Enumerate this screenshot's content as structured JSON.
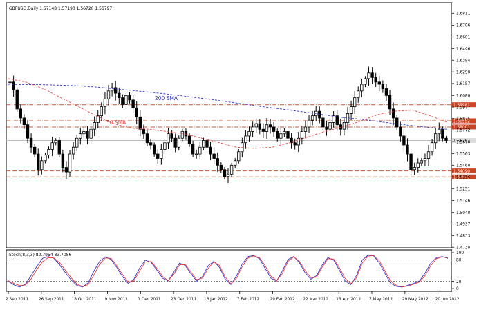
{
  "chart_data": [
    {
      "type": "candlestick",
      "title": "GBPUSD,Daily  1.57148 1.57190 1.56720 1.56797",
      "symbol": "GBPUSD",
      "timeframe": "Daily",
      "ohlc_header": {
        "open": 1.57148,
        "high": 1.5719,
        "low": 1.5672,
        "close": 1.56797
      },
      "ylim": [
        1.4725,
        1.6905
      ],
      "y_tick_labels": [
        "1.6811",
        "1.6706",
        "1.6601",
        "1.6496",
        "1.6394",
        "1.6290",
        "1.6187",
        "1.6080",
        "1.5977",
        "1.5875",
        "1.5772",
        "1.5670",
        "1.5563",
        "1.5460",
        "1.5356",
        "1.5251",
        "1.5146",
        "1.5040",
        "1.4937",
        "1.4833",
        "1.4730"
      ],
      "y_tick_values": [
        1.6811,
        1.6706,
        1.6601,
        1.6496,
        1.6394,
        1.629,
        1.6187,
        1.608,
        1.5977,
        1.5875,
        1.5772,
        1.567,
        1.5563,
        1.546,
        1.5356,
        1.5251,
        1.5146,
        1.504,
        1.4937,
        1.4833,
        1.473
      ],
      "x_tick_labels": [
        "2 Sep 2011",
        "26 Sep 2011",
        "18 Oct 2011",
        "9 Nov 2011",
        "1 Dec 2011",
        "23 Dec 2011",
        "16 Jan 2012",
        "7 Feb 2012",
        "29 Feb 2012",
        "22 Mar 2012",
        "13 Apr 2012",
        "7 May 2012",
        "29 May 2012",
        "20 Jun 2012"
      ],
      "price_series": [
        1.62,
        1.613,
        1.596,
        1.588,
        1.582,
        1.57,
        1.562,
        1.556,
        1.542,
        1.55,
        1.555,
        1.56,
        1.566,
        1.568,
        1.556,
        1.544,
        1.54,
        1.556,
        1.562,
        1.57,
        1.574,
        1.576,
        1.57,
        1.578,
        1.584,
        1.59,
        1.598,
        1.605,
        1.612,
        1.615,
        1.61,
        1.606,
        1.6,
        1.608,
        1.604,
        1.597,
        1.589,
        1.578,
        1.574,
        1.566,
        1.564,
        1.556,
        1.552,
        1.56,
        1.566,
        1.574,
        1.57,
        1.562,
        1.57,
        1.576,
        1.572,
        1.565,
        1.556,
        1.556,
        1.562,
        1.568,
        1.562,
        1.556,
        1.552,
        1.546,
        1.542,
        1.536,
        1.538,
        1.546,
        1.55,
        1.558,
        1.566,
        1.572,
        1.576,
        1.58,
        1.583,
        1.578,
        1.576,
        1.582,
        1.58,
        1.576,
        1.57,
        1.574,
        1.576,
        1.57,
        1.566,
        1.564,
        1.57,
        1.576,
        1.58,
        1.586,
        1.59,
        1.594,
        1.588,
        1.58,
        1.578,
        1.584,
        1.59,
        1.582,
        1.578,
        1.584,
        1.592,
        1.598,
        1.606,
        1.612,
        1.618,
        1.623,
        1.628,
        1.624,
        1.62,
        1.618,
        1.614,
        1.608,
        1.596,
        1.588,
        1.58,
        1.572,
        1.564,
        1.556,
        1.542,
        1.544,
        1.548,
        1.55,
        1.552,
        1.558,
        1.566,
        1.574,
        1.578,
        1.57,
        1.568
      ],
      "lines": [
        {
          "name": "200 SMA",
          "color": "#3333cc",
          "values": [
            1.618,
            1.6178,
            1.6176,
            1.6172,
            1.6166,
            1.6155,
            1.614,
            1.6125,
            1.611,
            1.6093,
            1.6075,
            1.6055,
            1.6035,
            1.6013,
            1.599,
            1.597,
            1.595,
            1.593,
            1.5908,
            1.5885,
            1.587,
            1.585,
            1.583,
            1.5812,
            1.5795,
            1.5779
          ]
        },
        {
          "name": "50 SMA",
          "color": "#ee4444",
          "values": [
            1.623,
            1.62,
            1.614,
            1.606,
            1.598,
            1.59,
            1.583,
            1.579,
            1.578,
            1.576,
            1.574,
            1.57,
            1.566,
            1.562,
            1.561,
            1.562,
            1.566,
            1.571,
            1.576,
            1.58,
            1.585,
            1.591,
            1.594,
            1.595,
            1.59,
            1.584
          ]
        }
      ],
      "hlines": [
        {
          "value": 1.5998,
          "label": "1.59981",
          "color": "#cc5533",
          "style": "dashdot"
        },
        {
          "value": 1.5855,
          "label": "1.58552",
          "color": "#cc5533",
          "style": "dashdot"
        },
        {
          "value": 1.58,
          "label": "1.58001",
          "color": "#cc5533",
          "style": "dashdot"
        },
        {
          "value": 1.568,
          "label": "1.56797",
          "color": "#bbbbbb",
          "style": "solid"
        },
        {
          "value": 1.5409,
          "label": "1.54090",
          "color": "#cc5533",
          "style": "dashed"
        },
        {
          "value": 1.5356,
          "label": "1.53562",
          "color": "#cc5533",
          "style": "dashed"
        }
      ],
      "annotations": [
        {
          "text": "200 SMA",
          "color": "#3333cc"
        },
        {
          "text": "50 SMA",
          "color": "#ee4444"
        }
      ],
      "grid": false
    },
    {
      "type": "line",
      "title": "Stoch(8,3,3) 80.7954 83.7086",
      "ylim": [
        0,
        100
      ],
      "y_tick_labels": [
        "100",
        "80",
        "20",
        "0"
      ],
      "y_tick_values": [
        100,
        80,
        20,
        0
      ],
      "levels": [
        80,
        20
      ],
      "series": [
        {
          "color": "#3333cc",
          "values": [
            20,
            10,
            4,
            12,
            36,
            62,
            84,
            89,
            84,
            66,
            44,
            24,
            9,
            4,
            16,
            49,
            76,
            88,
            81,
            59,
            33,
            14,
            26,
            57,
            79,
            73,
            52,
            29,
            21,
            46,
            71,
            64,
            41,
            21,
            33,
            63,
            76,
            59,
            26,
            11,
            36,
            69,
            89,
            92,
            83,
            56,
            29,
            21,
            49,
            81,
            89,
            72,
            44,
            26,
            36,
            66,
            86,
            79,
            51,
            21,
            11,
            36,
            79,
            93,
            91,
            71,
            41,
            14,
            6,
            4,
            9,
            14,
            21,
            43,
            71,
            86,
            89,
            84
          ]
        },
        {
          "color": "#ee3333",
          "values": [
            22,
            14,
            8,
            10,
            27,
            53,
            75,
            86,
            85,
            72,
            51,
            30,
            13,
            5,
            11,
            38,
            68,
            85,
            84,
            64,
            39,
            18,
            21,
            49,
            74,
            75,
            57,
            34,
            22,
            40,
            66,
            67,
            46,
            25,
            29,
            56,
            74,
            64,
            32,
            13,
            29,
            62,
            85,
            91,
            86,
            63,
            35,
            22,
            42,
            76,
            88,
            76,
            50,
            30,
            32,
            60,
            83,
            82,
            58,
            28,
            13,
            30,
            71,
            90,
            92,
            77,
            48,
            20,
            8,
            5,
            7,
            12,
            18,
            36,
            64,
            83,
            88,
            86
          ]
        }
      ]
    }
  ]
}
